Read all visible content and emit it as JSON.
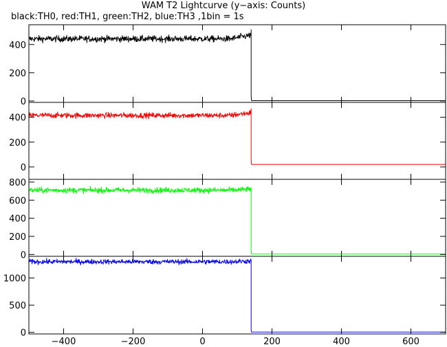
{
  "title": "WAM T2 Lightcurve (y−axis: Counts)",
  "subtitle": "black:TH0, red:TH1, green:TH2, blue:TH3 ,1bin = 1s",
  "chart_data": {
    "type": "line",
    "xlim": [
      -500,
      700
    ],
    "x_ticks": [
      -400,
      -200,
      0,
      200,
      400,
      600
    ],
    "x_tick_labels": [
      "−400",
      "−200",
      "0",
      "200",
      "400",
      "600"
    ],
    "x_drop": 140,
    "panels": [
      {
        "name": "TH0",
        "color": "#000000",
        "ylim": [
          -10,
          540
        ],
        "y_ticks": [
          0,
          200,
          400
        ],
        "y_tick_labels": [
          "0",
          "200",
          "400"
        ],
        "level_before": 440,
        "level_after": 2,
        "noise": 22,
        "end_level": 505
      },
      {
        "name": "TH1",
        "color": "#ff0000",
        "ylim": [
          -100,
          520
        ],
        "y_ticks": [
          0,
          200,
          400
        ],
        "y_tick_labels": [
          "0",
          "200",
          "400"
        ],
        "level_before": 415,
        "level_after": 20,
        "noise": 22,
        "end_level": 470
      },
      {
        "name": "TH2",
        "color": "#00ff00",
        "ylim": [
          -20,
          830
        ],
        "y_ticks": [
          0,
          200,
          400,
          600,
          800
        ],
        "y_tick_labels": [
          "0",
          "200",
          "400",
          "600",
          "800"
        ],
        "level_before": 710,
        "level_after": 5,
        "noise": 30,
        "end_level": 740
      },
      {
        "name": "TH3",
        "color": "#0000ff",
        "ylim": [
          -30,
          1400
        ],
        "y_ticks": [
          0,
          500,
          1000
        ],
        "y_tick_labels": [
          "0",
          "500",
          "1000"
        ],
        "level_before": 1300,
        "level_after": 5,
        "noise": 45,
        "end_level": 1330
      }
    ]
  }
}
